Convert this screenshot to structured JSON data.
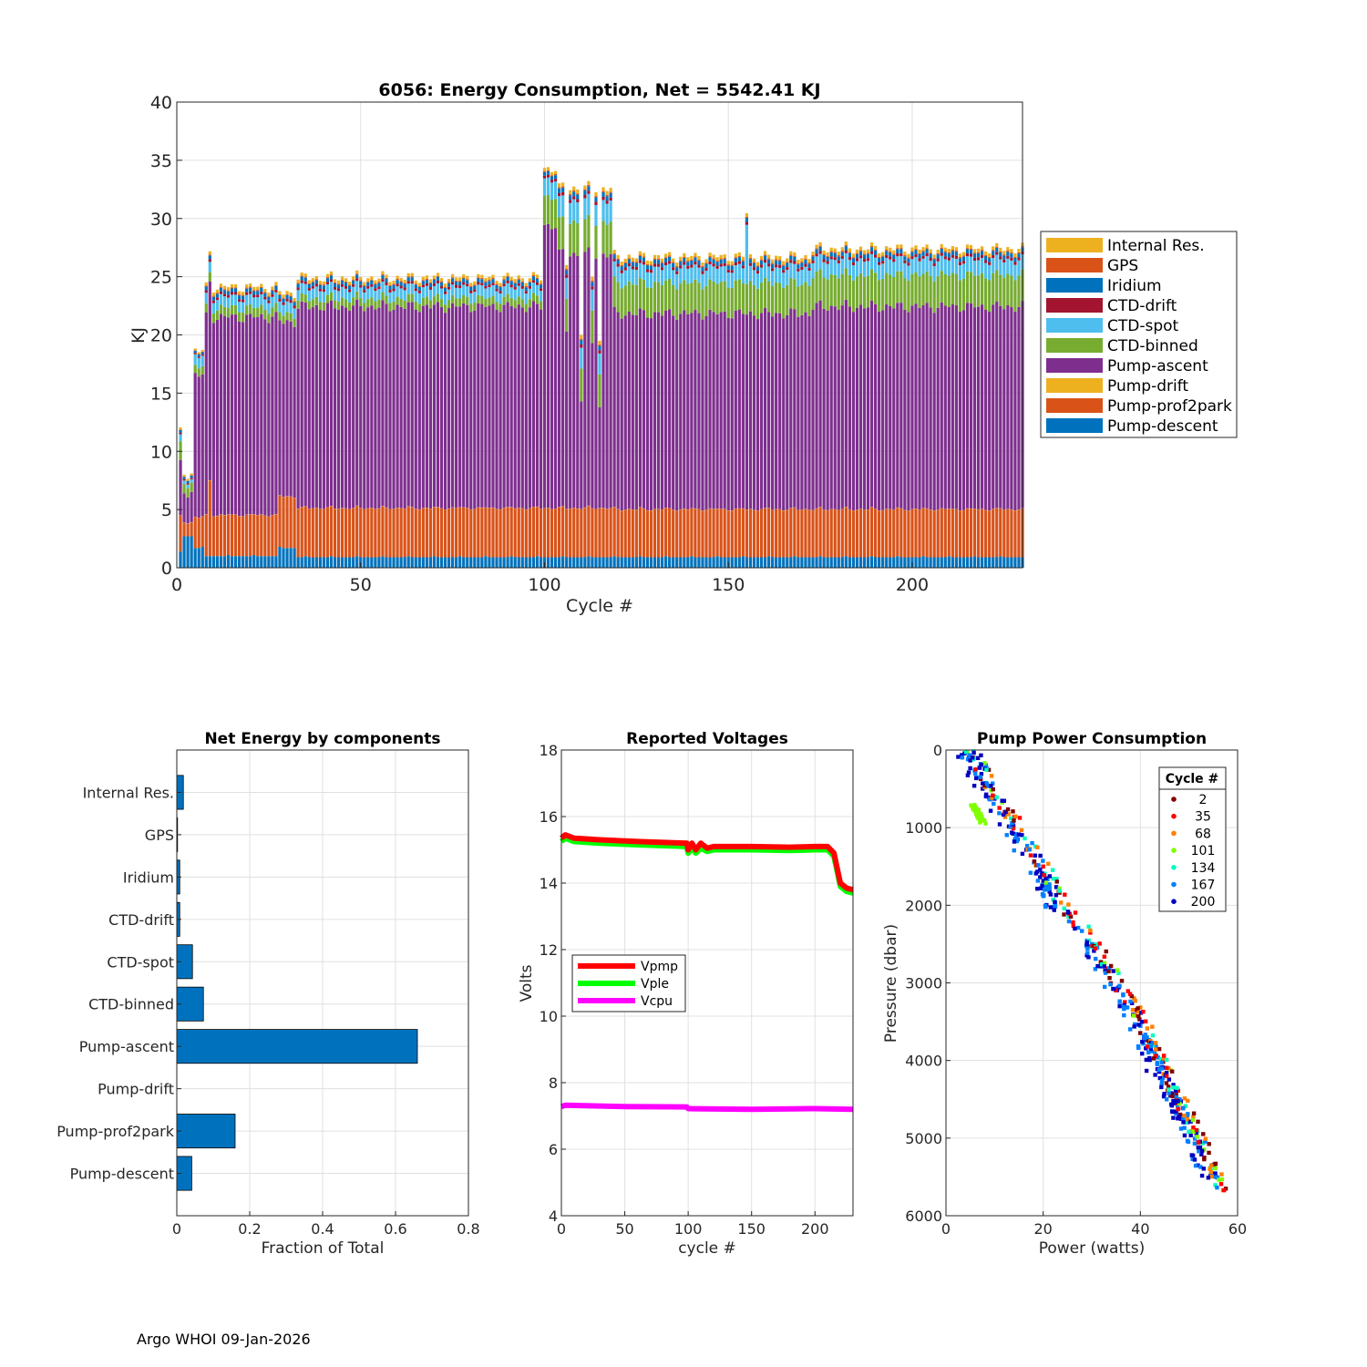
{
  "footer": "Argo WHOI 09-Jan-2026",
  "colors": {
    "pump_descent": "#0072BD",
    "pump_prof2park": "#D95319",
    "pump_drift": "#EDB120",
    "pump_ascent": "#7E2F8E",
    "ctd_binned": "#77AC30",
    "ctd_spot": "#4DBEEE",
    "ctd_drift": "#A2142F",
    "iridium": "#0072BD",
    "gps": "#D95319",
    "internal_res": "#EDB120"
  },
  "chart_data": [
    {
      "id": "energy",
      "type": "bar",
      "stacked": true,
      "title": "6056: Energy Consumption,  Net = 5542.41 KJ",
      "xlabel": "Cycle #",
      "ylabel": "KJ",
      "xlim": [
        0,
        230
      ],
      "ylim": [
        0,
        40
      ],
      "xticks": [
        0,
        50,
        100,
        150,
        200
      ],
      "yticks": [
        0,
        5,
        10,
        15,
        20,
        25,
        30,
        35,
        40
      ],
      "grid": true,
      "legend_position": "outside-right",
      "legend": [
        "Internal Res.",
        "GPS",
        "Iridium",
        "CTD-drift",
        "CTD-spot",
        "CTD-binned",
        "Pump-ascent",
        "Pump-drift",
        "Pump-prof2park",
        "Pump-descent"
      ],
      "series_keys": [
        "internal_res",
        "gps",
        "iridium",
        "ctd_drift",
        "ctd_spot",
        "ctd_binned",
        "pump_ascent",
        "pump_drift",
        "pump_prof2park",
        "pump_descent"
      ],
      "cycles": 230,
      "segments": [
        {
          "from": 1,
          "to": 1,
          "descent": 1.4,
          "prof2park": 3.0,
          "ascent": 4.4,
          "binned": 1.6,
          "spot": 0.6,
          "small": 0.6
        },
        {
          "from": 2,
          "to": 4,
          "descent": 2.7,
          "prof2park": 1.2,
          "ascent": 2.6,
          "binned": 0.8,
          "spot": 0.3,
          "small": 0.5
        },
        {
          "from": 5,
          "to": 7,
          "descent": 1.7,
          "prof2park": 2.6,
          "ascent": 12.2,
          "binned": 0.7,
          "spot": 0.9,
          "small": 0.5
        },
        {
          "from": 8,
          "to": 27,
          "descent": 1.0,
          "prof2park": 3.5,
          "ascent": 17.0,
          "binned": 0.8,
          "spot": 0.9,
          "small": 0.9
        },
        {
          "from": 28,
          "to": 32,
          "descent": 1.7,
          "prof2park": 4.4,
          "ascent": 15.0,
          "binned": 0.7,
          "spot": 0.9,
          "small": 0.9
        },
        {
          "from": 33,
          "to": 99,
          "descent": 0.9,
          "prof2park": 4.2,
          "ascent": 17.3,
          "binned": 0.7,
          "spot": 0.9,
          "small": 0.9
        },
        {
          "from": 100,
          "to": 103,
          "descent": 0.9,
          "prof2park": 4.2,
          "ascent": 24.3,
          "binned": 2.5,
          "spot": 1.5,
          "small": 0.9
        },
        {
          "from": 104,
          "to": 118,
          "descent": 0.9,
          "prof2park": 4.2,
          "ascent": 21.8,
          "binned": 2.8,
          "spot": 1.8,
          "small": 1.1
        },
        {
          "from": 119,
          "to": 172,
          "descent": 0.9,
          "prof2park": 4.1,
          "ascent": 16.8,
          "binned": 2.6,
          "spot": 1.3,
          "small": 1.0
        },
        {
          "from": 173,
          "to": 230,
          "descent": 0.9,
          "prof2park": 4.1,
          "ascent": 17.4,
          "binned": 2.7,
          "spot": 1.3,
          "small": 1.0
        }
      ],
      "spikes": [
        {
          "cycle": 9,
          "prof2park": 6.5
        },
        {
          "cycle": 106,
          "total_drop": 26.0
        },
        {
          "cycle": 110,
          "total_drop": 20.0
        },
        {
          "cycle": 113,
          "total_drop": 25.0
        },
        {
          "cycle": 115,
          "total_drop": 19.5
        },
        {
          "cycle": 155,
          "total_add": 3.8
        }
      ]
    },
    {
      "id": "components",
      "type": "bar",
      "orientation": "horizontal",
      "title": "Net Energy by components",
      "xlabel": "Fraction of Total",
      "ylabel": "",
      "xlim": [
        0,
        0.8
      ],
      "xticks": [
        0,
        0.2,
        0.4,
        0.6,
        0.8
      ],
      "xtick_labels": [
        "0",
        "0.2",
        "0.4",
        "0.6",
        "0.8"
      ],
      "grid": true,
      "categories": [
        "Internal Res.",
        "GPS",
        "Iridium",
        "CTD-drift",
        "CTD-spot",
        "CTD-binned",
        "Pump-ascent",
        "Pump-drift",
        "Pump-prof2park",
        "Pump-descent"
      ],
      "values": [
        0.018,
        0.002,
        0.008,
        0.008,
        0.043,
        0.073,
        0.66,
        0.0,
        0.16,
        0.041
      ]
    },
    {
      "id": "voltages",
      "type": "line",
      "title": "Reported Voltages",
      "xlabel": "cycle #",
      "ylabel": "Volts",
      "xlim": [
        0,
        230
      ],
      "ylim": [
        4,
        18
      ],
      "xticks": [
        0,
        50,
        100,
        150,
        200
      ],
      "yticks": [
        4,
        6,
        8,
        10,
        12,
        14,
        16,
        18
      ],
      "grid": true,
      "legend_position": "center-left",
      "series": [
        {
          "name": "Vpmp",
          "color": "#FF0000",
          "x": [
            0,
            3,
            10,
            30,
            60,
            99,
            100,
            103,
            106,
            110,
            115,
            120,
            150,
            180,
            200,
            210,
            215,
            220,
            225,
            230
          ],
          "y": [
            15.35,
            15.45,
            15.35,
            15.3,
            15.25,
            15.2,
            15.0,
            15.2,
            15.0,
            15.2,
            15.05,
            15.1,
            15.1,
            15.08,
            15.1,
            15.1,
            14.9,
            14.0,
            13.85,
            13.8
          ]
        },
        {
          "name": "Vple",
          "color": "#00FF00",
          "x": [
            0,
            3,
            10,
            30,
            60,
            99,
            100,
            103,
            106,
            110,
            115,
            120,
            150,
            180,
            200,
            210,
            215,
            220,
            225,
            230
          ],
          "y": [
            15.25,
            15.35,
            15.25,
            15.2,
            15.15,
            15.1,
            14.9,
            15.05,
            14.9,
            15.05,
            14.95,
            15.0,
            15.0,
            14.98,
            15.0,
            15.0,
            14.8,
            13.9,
            13.75,
            13.7
          ]
        },
        {
          "name": "Vcpu",
          "color": "#FF00FF",
          "x": [
            0,
            3,
            50,
            99,
            100,
            150,
            200,
            230
          ],
          "y": [
            7.28,
            7.32,
            7.28,
            7.27,
            7.22,
            7.2,
            7.22,
            7.2
          ]
        }
      ]
    },
    {
      "id": "pump",
      "type": "scatter",
      "title": "Pump Power Consumption",
      "xlabel": "Power (watts)",
      "ylabel": "Pressure (dbar)",
      "xlim": [
        0,
        60
      ],
      "ylim": [
        6000,
        0
      ],
      "y_reversed": true,
      "xticks": [
        0,
        20,
        40,
        60
      ],
      "yticks": [
        0,
        1000,
        2000,
        3000,
        4000,
        5000,
        6000
      ],
      "grid": true,
      "legend_title": "Cycle #",
      "legend_position": "top-right",
      "series": [
        {
          "name": "2",
          "color": "#800000"
        },
        {
          "name": "35",
          "color": "#FF0000"
        },
        {
          "name": "68",
          "color": "#FF8000"
        },
        {
          "name": "101",
          "color": "#80FF00"
        },
        {
          "name": "134",
          "color": "#00FFBF"
        },
        {
          "name": "167",
          "color": "#0080FF"
        },
        {
          "name": "200",
          "color": "#0000C0"
        }
      ],
      "trend": {
        "p": [
          0,
          500,
          1000,
          1500,
          2000,
          2500,
          3000,
          3500,
          4000,
          4500,
          5000,
          5500,
          5700
        ],
        "w": [
          5.5,
          9.5,
          15,
          20,
          24,
          31,
          35,
          40.5,
          44,
          48,
          52,
          55.5,
          57
        ]
      },
      "outlier_cluster": {
        "w": [
          5.0,
          8.5
        ],
        "p": [
          700,
          950
        ],
        "color": "#80FF00"
      },
      "series_weights": [
        1,
        1,
        1,
        0.5,
        1,
        3,
        3
      ]
    }
  ]
}
